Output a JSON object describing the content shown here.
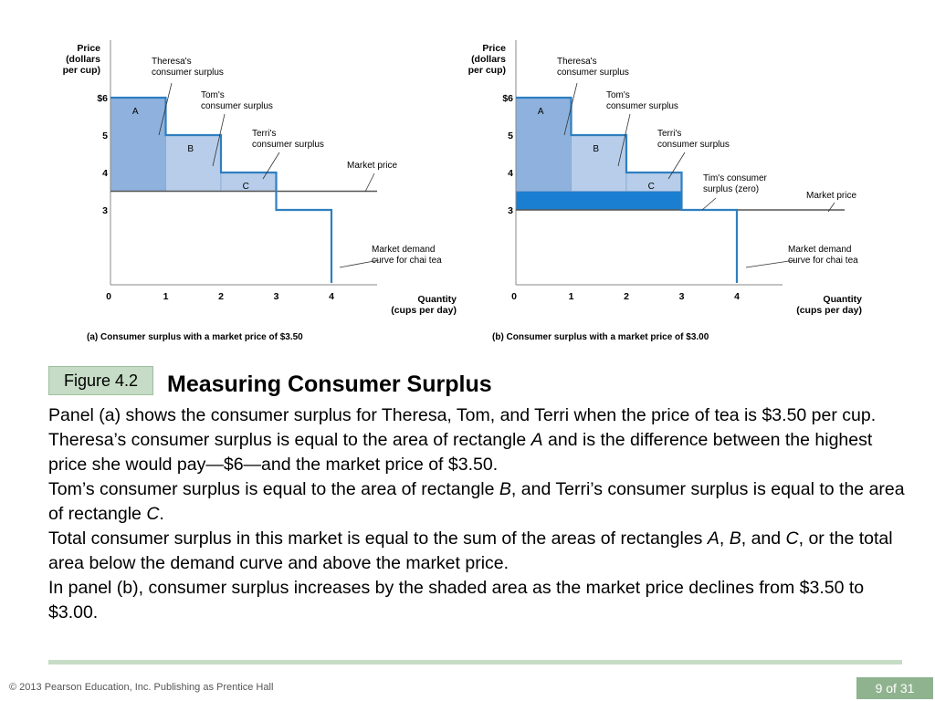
{
  "slide": {
    "figure_label": "Figure 4.2",
    "title": "Measuring Consumer Surplus",
    "paragraphs": [
      {
        "parts": [
          {
            "text": "Panel (a) shows the consumer surplus for Theresa, Tom, and Terri when the price of tea is $3.50 per cup."
          }
        ]
      },
      {
        "parts": [
          {
            "text": "Theresa’s consumer surplus is equal to the area of rectangle "
          },
          {
            "text": "A",
            "italic": true
          },
          {
            "text": " and is the difference between the highest price she would pay—$6—and the market price of $3.50."
          }
        ]
      },
      {
        "parts": [
          {
            "text": "Tom’s consumer surplus is equal to the area of rectangle "
          },
          {
            "text": "B",
            "italic": true
          },
          {
            "text": ", and Terri’s consumer surplus is equal to the area of rectangle "
          },
          {
            "text": "C",
            "italic": true
          },
          {
            "text": "."
          }
        ]
      },
      {
        "parts": [
          {
            "text": "Total consumer surplus in this market is equal to the sum of the areas of rectangles "
          },
          {
            "text": "A",
            "italic": true
          },
          {
            "text": ", "
          },
          {
            "text": "B",
            "italic": true
          },
          {
            "text": ", and "
          },
          {
            "text": "C",
            "italic": true
          },
          {
            "text": ", or the total area below the demand curve and above the market price."
          }
        ]
      },
      {
        "parts": [
          {
            "text": "In panel (b), consumer surplus increases by the shaded area as the market price declines from $3.50 to $3.00."
          }
        ]
      }
    ],
    "copyright": "© 2013 Pearson Education, Inc. Publishing as Prentice Hall",
    "page_number": "9 of 31"
  },
  "colors": {
    "demand_curve": "#2f7fc1",
    "surplus_a": "#8eb2dd",
    "surplus_bc": "#b7cdea",
    "added_surplus": "#1a7fd0",
    "price_line": "#555555",
    "badge_bg": "#c6dcc6",
    "page_badge_bg": "#8fb38f"
  },
  "chart_data": [
    {
      "id": "a",
      "type": "line",
      "caption": "(a) Consumer surplus with a market price of $3.50",
      "ylabel": [
        "Price",
        "(dollars",
        "per cup)"
      ],
      "xlabel": [
        "Quantity",
        "(cups per day)"
      ],
      "y_tick_labels": [
        {
          "value": 6,
          "label": "$6"
        },
        {
          "value": 5,
          "label": "5"
        },
        {
          "value": 4,
          "label": "4"
        },
        {
          "value": 3,
          "label": "3"
        }
      ],
      "x_tick_labels": [
        {
          "value": 0,
          "label": "0"
        },
        {
          "value": 1,
          "label": "1"
        },
        {
          "value": 2,
          "label": "2"
        },
        {
          "value": 3,
          "label": "3"
        },
        {
          "value": 4,
          "label": "4"
        }
      ],
      "demand_steps": [
        {
          "from": 0,
          "to": 1,
          "price": 6
        },
        {
          "from": 1,
          "to": 2,
          "price": 5
        },
        {
          "from": 2,
          "to": 3,
          "price": 4
        },
        {
          "from": 3,
          "to": 4,
          "price": 3
        }
      ],
      "market_price": 3.5,
      "surplus_rects": [
        {
          "label": "A",
          "x0": 0,
          "x1": 1,
          "y0": 3.5,
          "y1": 6,
          "fill": "#8eb2dd"
        },
        {
          "label": "B",
          "x0": 1,
          "x1": 2,
          "y0": 3.5,
          "y1": 5,
          "fill": "#b7cdea"
        },
        {
          "label": "C",
          "x0": 2,
          "x1": 3,
          "y0": 3.5,
          "y1": 4,
          "fill": "#b7cdea"
        }
      ],
      "added_surplus_rects": [],
      "annotations": [
        {
          "id": "theresa",
          "lines": [
            "Theresa's",
            "consumer surplus"
          ]
        },
        {
          "id": "tom",
          "lines": [
            "Tom's",
            "consumer surplus"
          ]
        },
        {
          "id": "terri",
          "lines": [
            "Terri's",
            "consumer surplus"
          ]
        },
        {
          "id": "market-price",
          "lines": [
            "Market price"
          ]
        },
        {
          "id": "demand",
          "lines": [
            "Market demand",
            "curve for chai tea"
          ]
        }
      ]
    },
    {
      "id": "b",
      "type": "line",
      "caption": "(b) Consumer surplus with a market price of $3.00",
      "ylabel": [
        "Price",
        "(dollars",
        "per cup)"
      ],
      "xlabel": [
        "Quantity",
        "(cups per day)"
      ],
      "y_tick_labels": [
        {
          "value": 6,
          "label": "$6"
        },
        {
          "value": 5,
          "label": "5"
        },
        {
          "value": 4,
          "label": "4"
        },
        {
          "value": 3,
          "label": "3"
        }
      ],
      "x_tick_labels": [
        {
          "value": 0,
          "label": "0"
        },
        {
          "value": 1,
          "label": "1"
        },
        {
          "value": 2,
          "label": "2"
        },
        {
          "value": 3,
          "label": "3"
        },
        {
          "value": 4,
          "label": "4"
        }
      ],
      "demand_steps": [
        {
          "from": 0,
          "to": 1,
          "price": 6
        },
        {
          "from": 1,
          "to": 2,
          "price": 5
        },
        {
          "from": 2,
          "to": 3,
          "price": 4
        },
        {
          "from": 3,
          "to": 4,
          "price": 3
        }
      ],
      "market_price": 3.0,
      "surplus_rects": [
        {
          "label": "A",
          "x0": 0,
          "x1": 1,
          "y0": 3.5,
          "y1": 6,
          "fill": "#8eb2dd"
        },
        {
          "label": "B",
          "x0": 1,
          "x1": 2,
          "y0": 3.5,
          "y1": 5,
          "fill": "#b7cdea"
        },
        {
          "label": "C",
          "x0": 2,
          "x1": 3,
          "y0": 3.5,
          "y1": 4,
          "fill": "#b7cdea"
        }
      ],
      "added_surplus_rects": [
        {
          "x0": 0,
          "x1": 3,
          "y0": 3.0,
          "y1": 3.5,
          "fill": "#1a7fd0"
        }
      ],
      "annotations": [
        {
          "id": "theresa",
          "lines": [
            "Theresa's",
            "consumer surplus"
          ]
        },
        {
          "id": "tom",
          "lines": [
            "Tom's",
            "consumer surplus"
          ]
        },
        {
          "id": "terri",
          "lines": [
            "Terri's",
            "consumer surplus"
          ]
        },
        {
          "id": "tim",
          "lines": [
            "Tim's consumer",
            "surplus (zero)"
          ]
        },
        {
          "id": "market-price",
          "lines": [
            "Market price"
          ]
        },
        {
          "id": "demand",
          "lines": [
            "Market demand",
            "curve for chai tea"
          ]
        }
      ]
    }
  ]
}
